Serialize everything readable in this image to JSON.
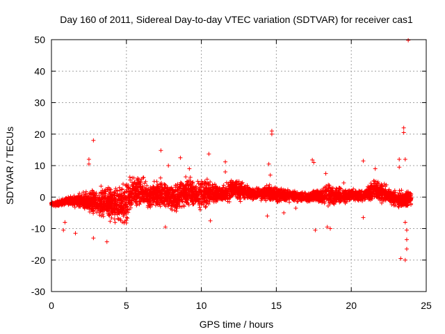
{
  "chart_data": {
    "type": "scatter",
    "title": "Day 160 of 2011, Sidereal Day-to-day VTEC variation (SDTVAR) for receiver cas1",
    "xlabel": "GPS time / hours",
    "ylabel": "SDTVAR / TECUs",
    "xlim": [
      0,
      25
    ],
    "ylim": [
      -30,
      50
    ],
    "xticks": [
      0,
      5,
      10,
      15,
      20,
      25
    ],
    "yticks": [
      -30,
      -20,
      -10,
      0,
      10,
      20,
      30,
      40,
      50
    ],
    "grid": true,
    "marker": "+",
    "color": "#ff0000",
    "envelope": {
      "x": [
        0,
        0.5,
        1,
        1.5,
        2,
        2.5,
        3,
        3.5,
        4,
        4.5,
        5,
        5.5,
        6,
        6.5,
        7,
        7.5,
        8,
        8.5,
        9,
        9.5,
        10,
        10.5,
        11,
        11.5,
        12,
        12.5,
        13,
        13.5,
        14,
        14.5,
        15,
        15.5,
        16,
        16.5,
        17,
        17.5,
        18,
        18.5,
        19,
        19.5,
        20,
        20.5,
        21,
        21.5,
        22,
        22.5,
        23,
        23.5,
        24
      ],
      "upper": [
        -1.5,
        -1,
        0,
        0.5,
        1.5,
        2.5,
        3,
        3.5,
        4,
        5,
        6,
        7.5,
        7,
        5,
        5,
        6,
        4,
        6,
        7,
        6,
        6,
        6,
        4,
        4,
        6,
        6,
        4,
        3,
        3,
        4,
        3,
        3,
        2.5,
        2,
        1.5,
        2.5,
        3,
        5,
        3,
        3,
        2.5,
        2.5,
        3,
        6,
        5,
        3,
        2,
        2.5,
        2
      ],
      "lower": [
        -3,
        -3,
        -2.5,
        -3,
        -4,
        -5,
        -6,
        -7,
        -8,
        -9,
        -10,
        -4,
        -3,
        -5,
        -3,
        -4,
        -5,
        -5,
        -4,
        -4,
        -4,
        -3,
        -2,
        -2,
        -1,
        -1.5,
        -1,
        -1,
        -1,
        -1.5,
        -2,
        -1.5,
        -1.5,
        -1.5,
        -2,
        -1.5,
        -2,
        -3,
        -2,
        -2,
        -1.5,
        -1.5,
        -1.5,
        -1,
        -2,
        -2,
        -3,
        -4,
        -3
      ]
    },
    "outliers": [
      {
        "x": 0.8,
        "y": -10.5
      },
      {
        "x": 0.9,
        "y": -8
      },
      {
        "x": 1.6,
        "y": -11.5
      },
      {
        "x": 2.5,
        "y": 12
      },
      {
        "x": 2.5,
        "y": 10.5
      },
      {
        "x": 2.8,
        "y": 18
      },
      {
        "x": 2.8,
        "y": -13
      },
      {
        "x": 3.7,
        "y": -14.2
      },
      {
        "x": 7.3,
        "y": 14.8
      },
      {
        "x": 7.6,
        "y": -9.5
      },
      {
        "x": 7.8,
        "y": 10
      },
      {
        "x": 8.6,
        "y": 12.5
      },
      {
        "x": 9.2,
        "y": 9
      },
      {
        "x": 10.5,
        "y": 13.7
      },
      {
        "x": 10.6,
        "y": -7.5
      },
      {
        "x": 11.6,
        "y": 11.2
      },
      {
        "x": 11.6,
        "y": 8
      },
      {
        "x": 14.4,
        "y": -6
      },
      {
        "x": 14.5,
        "y": 10.5
      },
      {
        "x": 14.6,
        "y": 7
      },
      {
        "x": 14.7,
        "y": 21
      },
      {
        "x": 14.7,
        "y": 20
      },
      {
        "x": 15.5,
        "y": -5
      },
      {
        "x": 16.3,
        "y": -3.5
      },
      {
        "x": 17.4,
        "y": 11.8
      },
      {
        "x": 17.5,
        "y": 11
      },
      {
        "x": 17.6,
        "y": -10.5
      },
      {
        "x": 18.3,
        "y": 7.5
      },
      {
        "x": 18.4,
        "y": -9.5
      },
      {
        "x": 18.6,
        "y": -10
      },
      {
        "x": 19.5,
        "y": 4.5
      },
      {
        "x": 20.8,
        "y": -6.5
      },
      {
        "x": 20.8,
        "y": 11.5
      },
      {
        "x": 21.6,
        "y": 9
      },
      {
        "x": 23.2,
        "y": 12
      },
      {
        "x": 23.2,
        "y": 9.5
      },
      {
        "x": 23.3,
        "y": -19.5
      },
      {
        "x": 23.5,
        "y": 22
      },
      {
        "x": 23.5,
        "y": 20.5
      },
      {
        "x": 23.6,
        "y": 12
      },
      {
        "x": 23.6,
        "y": -20
      },
      {
        "x": 23.7,
        "y": -13.5
      },
      {
        "x": 23.7,
        "y": -16.5
      },
      {
        "x": 23.7,
        "y": -10.5
      },
      {
        "x": 23.6,
        "y": -8
      },
      {
        "x": 23.8,
        "y": 49.8
      }
    ]
  }
}
